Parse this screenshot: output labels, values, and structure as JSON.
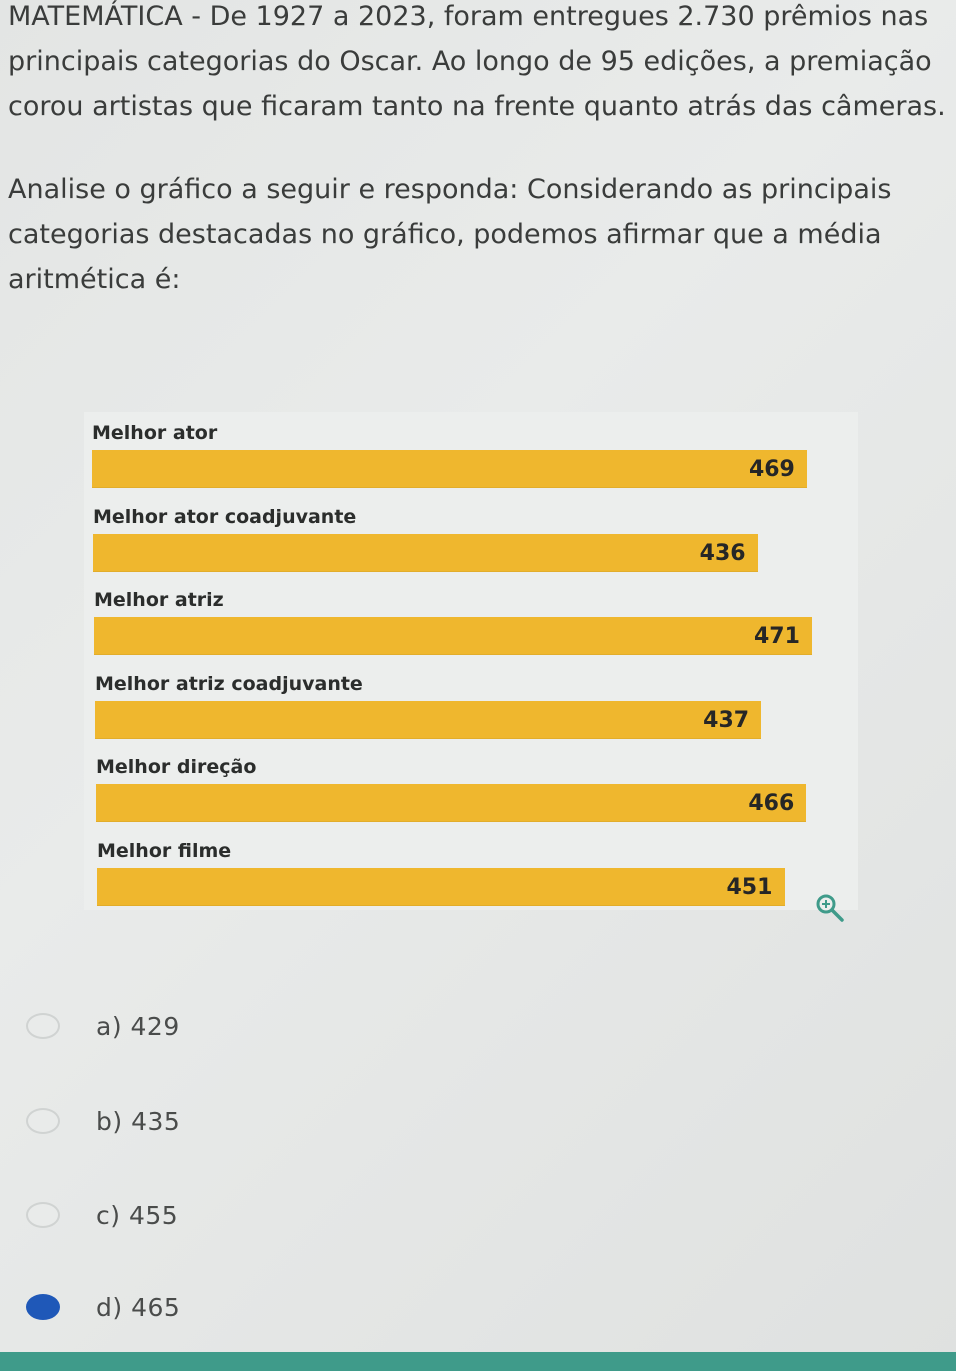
{
  "question": {
    "paragraph1": "MATEMÁTICA - De 1927 a 2023, foram entregues 2.730 prêmios nas principais categorias do Oscar. Ao longo de 95 edições, a premiação corou artistas que ficaram tanto na frente quanto atrás das câmeras.",
    "paragraph2": "Analise o gráfico a seguir e responda: Considerando as principais categorias destacadas no gráfico, podemos afirmar que a média aritmética é:"
  },
  "chart_data": {
    "type": "bar",
    "orientation": "horizontal",
    "categories": [
      "Melhor ator",
      "Melhor ator coadjuvante",
      "Melhor atriz",
      "Melhor atriz coadjuvante",
      "Melhor direção",
      "Melhor filme"
    ],
    "values": [
      469,
      436,
      471,
      437,
      466,
      451
    ],
    "title": "",
    "xlabel": "",
    "ylabel": "",
    "bar_color": "#efb72e",
    "background_color": "#eceeed",
    "data_labels": true,
    "grid": false
  },
  "chart_tools": {
    "zoom_icon": "zoom-in-icon"
  },
  "options": [
    {
      "label": "a) 429",
      "selected": false
    },
    {
      "label": "b) 435",
      "selected": false
    },
    {
      "label": "c) 455",
      "selected": false
    },
    {
      "label": "d) 465",
      "selected": true
    }
  ],
  "colors": {
    "selected_radio": "#1f58b8",
    "bottom_strip": "#3f9b8a"
  }
}
